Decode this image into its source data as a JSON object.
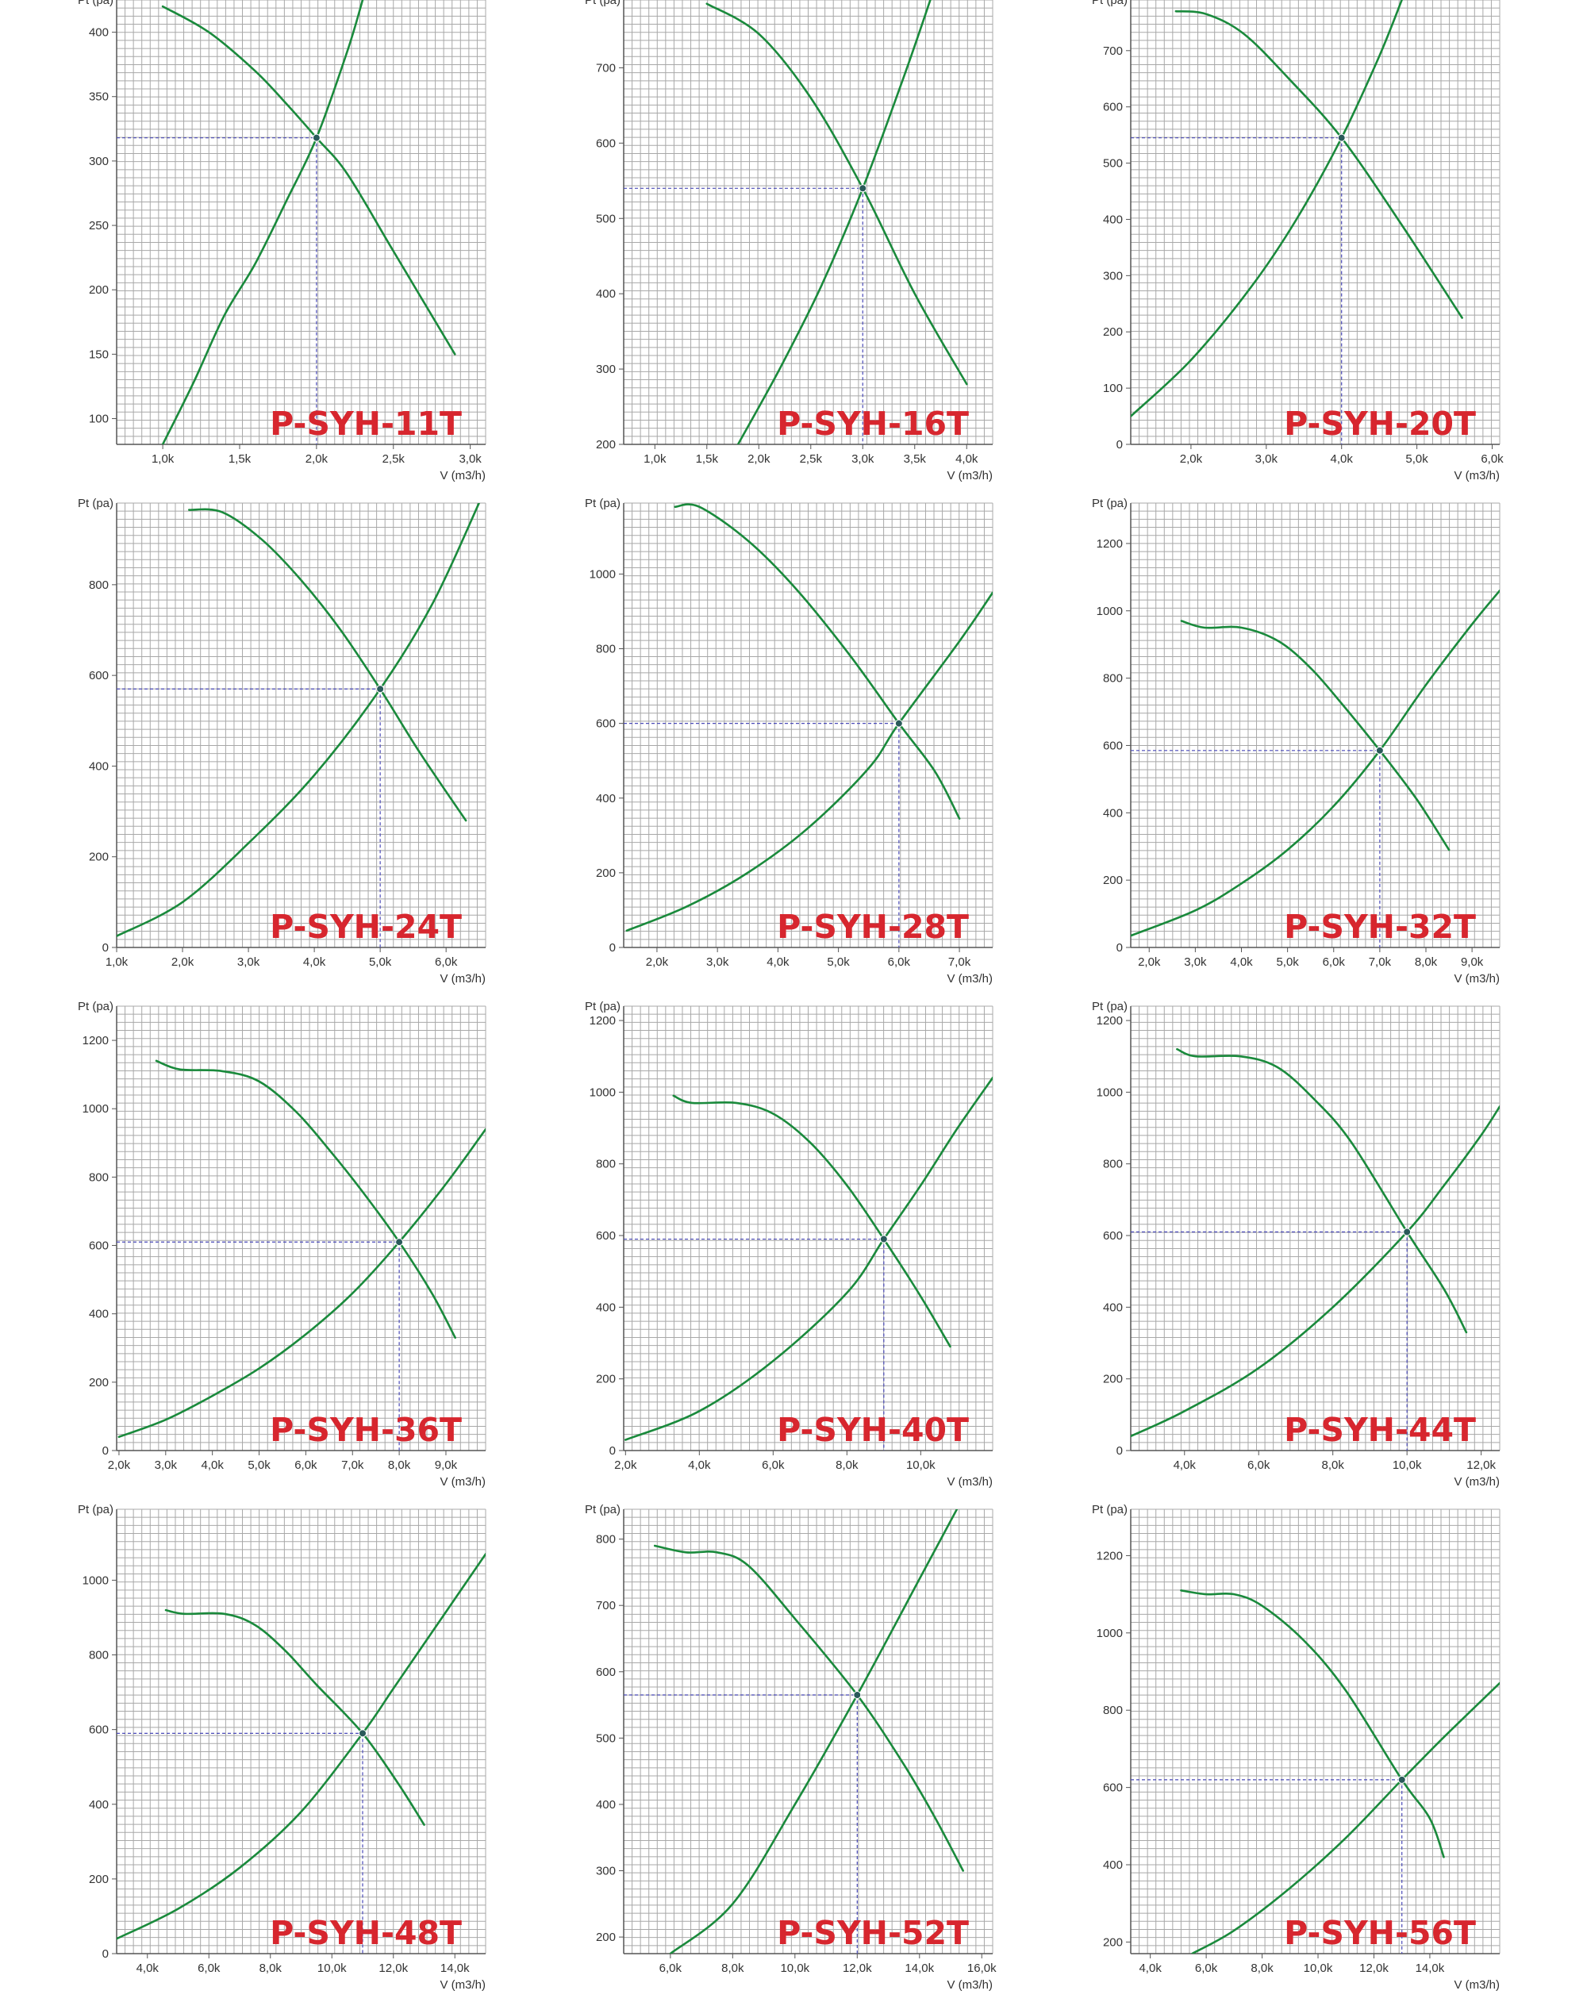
{
  "colors": {
    "grid": "#a8a8a8",
    "axis": "#555555",
    "curve": "#1a8a3c",
    "guide": "#4a4ab8",
    "label": "#d7262e"
  },
  "chart_data": [
    {
      "type": "line",
      "title": "P-SYH-11T",
      "ylabel": "Pt (pa)",
      "xlabel": "V (m3/h)",
      "xlim": [
        700,
        3100
      ],
      "ylim": [
        80,
        425
      ],
      "xticks": [
        1000,
        1500,
        2000,
        2500,
        3000
      ],
      "xtick_labels": [
        "1,0k",
        "1,5k",
        "2,0k",
        "2,5k",
        "3,0k"
      ],
      "yticks": [
        100,
        150,
        200,
        250,
        300,
        350,
        400
      ],
      "ytick_labels": [
        "100",
        "150",
        "200",
        "250",
        "300",
        "350",
        "400"
      ],
      "operating_point": [
        2000,
        318
      ],
      "series": [
        {
          "x": [
            1000,
            1200,
            1400,
            1600,
            1800,
            2000,
            2200,
            2300
          ],
          "y": [
            80,
            128,
            180,
            220,
            268,
            318,
            385,
            425
          ]
        },
        {
          "x": [
            1000,
            1300,
            1600,
            1800,
            2000,
            2200,
            2500,
            2900
          ],
          "y": [
            420,
            400,
            370,
            345,
            318,
            290,
            230,
            150
          ]
        }
      ]
    },
    {
      "type": "line",
      "title": "P-SYH-16T",
      "ylabel": "Pt (pa)",
      "xlabel": "V (m3/h)",
      "xlim": [
        700,
        4250
      ],
      "ylim": [
        200,
        790
      ],
      "xticks": [
        1000,
        1500,
        2000,
        2500,
        3000,
        3500,
        4000
      ],
      "xtick_labels": [
        "1,0k",
        "1,5k",
        "2,0k",
        "2,5k",
        "3,0k",
        "3,5k",
        "4,0k"
      ],
      "yticks": [
        200,
        300,
        400,
        500,
        600,
        700
      ],
      "ytick_labels": [
        "200",
        "300",
        "400",
        "500",
        "600",
        "700"
      ],
      "operating_point": [
        3000,
        540
      ],
      "series": [
        {
          "x": [
            1800,
            2200,
            2600,
            3000,
            3400,
            3650
          ],
          "y": [
            200,
            300,
            410,
            540,
            690,
            790
          ]
        },
        {
          "x": [
            1500,
            2000,
            2500,
            3000,
            3500,
            4000
          ],
          "y": [
            785,
            745,
            660,
            540,
            400,
            280
          ]
        }
      ]
    },
    {
      "type": "line",
      "title": "P-SYH-20T",
      "ylabel": "Pt (pa)",
      "xlabel": "V (m3/h)",
      "xlim": [
        1200,
        6100
      ],
      "ylim": [
        0,
        790
      ],
      "xticks": [
        2000,
        3000,
        4000,
        5000,
        6000
      ],
      "xtick_labels": [
        "2,0k",
        "3,0k",
        "4,0k",
        "5,0k",
        "6,0k"
      ],
      "yticks": [
        0,
        100,
        200,
        300,
        400,
        500,
        600,
        700
      ],
      "ytick_labels": [
        "0",
        "100",
        "200",
        "300",
        "400",
        "500",
        "600",
        "700"
      ],
      "operating_point": [
        4000,
        545
      ],
      "series": [
        {
          "x": [
            1200,
            2000,
            2800,
            3400,
            4000,
            4500,
            4800
          ],
          "y": [
            50,
            150,
            280,
            400,
            545,
            690,
            790
          ]
        },
        {
          "x": [
            1800,
            2200,
            2700,
            3300,
            4000,
            4800,
            5600
          ],
          "y": [
            770,
            765,
            730,
            650,
            545,
            390,
            225
          ]
        }
      ]
    },
    {
      "type": "line",
      "title": "P-SYH-24T",
      "ylabel": "Pt (pa)",
      "xlabel": "V (m3/h)",
      "xlim": [
        1000,
        6600
      ],
      "ylim": [
        0,
        980
      ],
      "xticks": [
        1000,
        2000,
        3000,
        4000,
        5000,
        6000
      ],
      "xtick_labels": [
        "1,0k",
        "2,0k",
        "3,0k",
        "4,0k",
        "5,0k",
        "6,0k"
      ],
      "yticks": [
        0,
        200,
        400,
        600,
        800
      ],
      "ytick_labels": [
        "0",
        "200",
        "400",
        "600",
        "800"
      ],
      "operating_point": [
        5000,
        570
      ],
      "series": [
        {
          "x": [
            1000,
            2000,
            3000,
            4000,
            5000,
            5800,
            6500
          ],
          "y": [
            25,
            100,
            230,
            380,
            570,
            760,
            980
          ]
        },
        {
          "x": [
            2100,
            2600,
            3200,
            3800,
            4400,
            5000,
            5600,
            6300
          ],
          "y": [
            965,
            960,
            900,
            810,
            700,
            570,
            430,
            280
          ]
        }
      ]
    },
    {
      "type": "line",
      "title": "P-SYH-28T",
      "ylabel": "Pt (pa)",
      "xlabel": "V (m3/h)",
      "xlim": [
        1450,
        7550
      ],
      "ylim": [
        0,
        1190
      ],
      "xticks": [
        2000,
        3000,
        4000,
        5000,
        6000,
        7000
      ],
      "xtick_labels": [
        "2,0k",
        "3,0k",
        "4,0k",
        "5,0k",
        "6,0k",
        "7,0k"
      ],
      "yticks": [
        0,
        200,
        400,
        600,
        800,
        1000
      ],
      "ytick_labels": [
        "0",
        "200",
        "400",
        "600",
        "800",
        "1000"
      ],
      "operating_point": [
        6000,
        600
      ],
      "series": [
        {
          "x": [
            1500,
            2500,
            3500,
            4500,
            5500,
            6000,
            7000,
            7550
          ],
          "y": [
            45,
            110,
            200,
            320,
            480,
            600,
            820,
            950
          ]
        },
        {
          "x": [
            2300,
            2700,
            3500,
            4300,
            5200,
            6000,
            6600,
            7000
          ],
          "y": [
            1180,
            1180,
            1090,
            960,
            780,
            600,
            470,
            345
          ]
        }
      ]
    },
    {
      "type": "line",
      "title": "P-SYH-32T",
      "ylabel": "Pt (pa)",
      "xlabel": "V (m3/h)",
      "xlim": [
        1600,
        9600
      ],
      "ylim": [
        0,
        1320
      ],
      "xticks": [
        2000,
        3000,
        4000,
        5000,
        6000,
        7000,
        8000,
        9000
      ],
      "xtick_labels": [
        "2,0k",
        "3,0k",
        "4,0k",
        "5,0k",
        "6,0k",
        "7,0k",
        "8,0k",
        "9,0k"
      ],
      "yticks": [
        0,
        200,
        400,
        600,
        800,
        1000,
        1200
      ],
      "ytick_labels": [
        "0",
        "200",
        "400",
        "600",
        "800",
        "1000",
        "1200"
      ],
      "operating_point": [
        7000,
        585
      ],
      "series": [
        {
          "x": [
            1600,
            3000,
            4000,
            5000,
            6000,
            7000,
            8000,
            9000,
            9600
          ],
          "y": [
            35,
            110,
            190,
            290,
            420,
            585,
            780,
            960,
            1060
          ]
        },
        {
          "x": [
            2700,
            3200,
            4000,
            4800,
            5500,
            6200,
            7000,
            7800,
            8500
          ],
          "y": [
            970,
            950,
            950,
            910,
            830,
            720,
            585,
            440,
            290
          ]
        }
      ]
    },
    {
      "type": "line",
      "title": "P-SYH-36T",
      "ylabel": "Pt (pa)",
      "xlabel": "V (m3/h)",
      "xlim": [
        1950,
        9850
      ],
      "ylim": [
        0,
        1300
      ],
      "xticks": [
        2000,
        3000,
        4000,
        5000,
        6000,
        7000,
        8000,
        9000
      ],
      "xtick_labels": [
        "2,0k",
        "3,0k",
        "4,0k",
        "5,0k",
        "6,0k",
        "7,0k",
        "8,0k",
        "9,0k"
      ],
      "yticks": [
        0,
        200,
        400,
        600,
        800,
        1000,
        1200
      ],
      "ytick_labels": [
        "0",
        "200",
        "400",
        "600",
        "800",
        "1000",
        "1200"
      ],
      "operating_point": [
        8000,
        610
      ],
      "series": [
        {
          "x": [
            2000,
            3000,
            4000,
            5000,
            6000,
            7000,
            8000,
            9000,
            9850
          ],
          "y": [
            40,
            90,
            160,
            240,
            340,
            460,
            610,
            780,
            940
          ]
        },
        {
          "x": [
            2800,
            3300,
            4200,
            5000,
            5800,
            6500,
            7200,
            8000,
            8700,
            9200
          ],
          "y": [
            1140,
            1115,
            1110,
            1080,
            990,
            880,
            760,
            610,
            460,
            330
          ]
        }
      ]
    },
    {
      "type": "line",
      "title": "P-SYH-40T",
      "ylabel": "Pt (pa)",
      "xlabel": "V (m3/h)",
      "xlim": [
        1950,
        11950
      ],
      "ylim": [
        0,
        1240
      ],
      "xticks": [
        2000,
        4000,
        6000,
        8000,
        10000
      ],
      "xtick_labels": [
        "2,0k",
        "4,0k",
        "6,0k",
        "8,0k",
        "10,0k"
      ],
      "yticks": [
        0,
        200,
        400,
        600,
        800,
        1000,
        1200
      ],
      "ytick_labels": [
        "0",
        "200",
        "400",
        "600",
        "800",
        "1000",
        "1200"
      ],
      "operating_point": [
        9000,
        590
      ],
      "series": [
        {
          "x": [
            2000,
            4000,
            6000,
            8000,
            9000,
            10000,
            11000,
            11950
          ],
          "y": [
            30,
            110,
            250,
            440,
            590,
            740,
            900,
            1040
          ]
        },
        {
          "x": [
            3300,
            3800,
            5000,
            6000,
            7000,
            8000,
            9000,
            10000,
            10800
          ],
          "y": [
            990,
            970,
            970,
            940,
            860,
            740,
            590,
            430,
            290
          ]
        }
      ]
    },
    {
      "type": "line",
      "title": "P-SYH-44T",
      "ylabel": "Pt (pa)",
      "xlabel": "V (m3/h)",
      "xlim": [
        2550,
        12500
      ],
      "ylim": [
        0,
        1240
      ],
      "xticks": [
        4000,
        6000,
        8000,
        10000,
        12000
      ],
      "xtick_labels": [
        "4,0k",
        "6,0k",
        "8,0k",
        "10,0k",
        "12,0k"
      ],
      "yticks": [
        0,
        200,
        400,
        600,
        800,
        1000,
        1200
      ],
      "ytick_labels": [
        "0",
        "200",
        "400",
        "600",
        "800",
        "1000",
        "1200"
      ],
      "operating_point": [
        10000,
        610
      ],
      "series": [
        {
          "x": [
            2550,
            4000,
            6000,
            8000,
            10000,
            11000,
            12000,
            12500
          ],
          "y": [
            40,
            110,
            230,
            400,
            610,
            740,
            880,
            960
          ]
        },
        {
          "x": [
            3800,
            4300,
            5500,
            6500,
            7500,
            8500,
            10000,
            11000,
            11600
          ],
          "y": [
            1120,
            1100,
            1100,
            1070,
            980,
            860,
            610,
            450,
            330
          ]
        }
      ]
    },
    {
      "type": "line",
      "title": "P-SYH-48T",
      "ylabel": "Pt (pa)",
      "xlabel": "V (m3/h)",
      "xlim": [
        3000,
        15000
      ],
      "ylim": [
        0,
        1190
      ],
      "xticks": [
        4000,
        6000,
        8000,
        10000,
        12000,
        14000
      ],
      "xtick_labels": [
        "4,0k",
        "6,0k",
        "8,0k",
        "10,0k",
        "12,0k",
        "14,0k"
      ],
      "yticks": [
        0,
        200,
        400,
        600,
        800,
        1000
      ],
      "ytick_labels": [
        "0",
        "200",
        "400",
        "600",
        "800",
        "1000"
      ],
      "operating_point": [
        11000,
        590
      ],
      "series": [
        {
          "x": [
            3000,
            5000,
            7000,
            9000,
            11000,
            12000,
            13000,
            14000,
            15000
          ],
          "y": [
            40,
            120,
            230,
            380,
            590,
            710,
            830,
            950,
            1070
          ]
        },
        {
          "x": [
            4600,
            5200,
            6500,
            7500,
            8500,
            9500,
            11000,
            12200,
            13000
          ],
          "y": [
            920,
            910,
            910,
            880,
            810,
            720,
            590,
            450,
            345
          ]
        }
      ]
    },
    {
      "type": "line",
      "title": "P-SYH-52T",
      "ylabel": "Pt (pa)",
      "xlabel": "V (m3/h)",
      "xlim": [
        4500,
        16350
      ],
      "ylim": [
        175,
        845
      ],
      "xticks": [
        6000,
        8000,
        10000,
        12000,
        14000,
        16000
      ],
      "xtick_labels": [
        "6,0k",
        "8,0k",
        "10,0k",
        "12,0k",
        "14,0k",
        "16,0k"
      ],
      "yticks": [
        200,
        300,
        400,
        500,
        600,
        700,
        800
      ],
      "ytick_labels": [
        "200",
        "300",
        "400",
        "500",
        "600",
        "700",
        "800"
      ],
      "operating_point": [
        12000,
        565
      ],
      "series": [
        {
          "x": [
            6000,
            8000,
            10000,
            12000,
            14000,
            15200
          ],
          "y": [
            175,
            250,
            400,
            565,
            740,
            845
          ]
        },
        {
          "x": [
            5500,
            6500,
            7500,
            8500,
            10000,
            12000,
            13500,
            14500,
            15400
          ],
          "y": [
            790,
            780,
            780,
            760,
            680,
            565,
            460,
            380,
            300
          ]
        }
      ]
    },
    {
      "type": "line",
      "title": "P-SYH-56T",
      "ylabel": "Pt (pa)",
      "xlabel": "V (m3/h)",
      "xlim": [
        3300,
        16500
      ],
      "ylim": [
        170,
        1320
      ],
      "xticks": [
        4000,
        6000,
        8000,
        10000,
        12000,
        14000
      ],
      "xtick_labels": [
        "4,0k",
        "6,0k",
        "8,0k",
        "10,0k",
        "12,0k",
        "14,0k"
      ],
      "yticks": [
        200,
        400,
        600,
        800,
        1000,
        1200
      ],
      "ytick_labels": [
        "200",
        "400",
        "600",
        "800",
        "1000",
        "1200"
      ],
      "operating_point": [
        13000,
        620
      ],
      "series": [
        {
          "x": [
            5500,
            7000,
            9000,
            11000,
            13000,
            14500,
            16500
          ],
          "y": [
            170,
            230,
            340,
            470,
            620,
            730,
            870
          ]
        },
        {
          "x": [
            5100,
            6000,
            7000,
            8000,
            9500,
            11000,
            13000,
            14000,
            14500
          ],
          "y": [
            1110,
            1100,
            1100,
            1070,
            980,
            850,
            620,
            520,
            420
          ]
        }
      ]
    }
  ]
}
